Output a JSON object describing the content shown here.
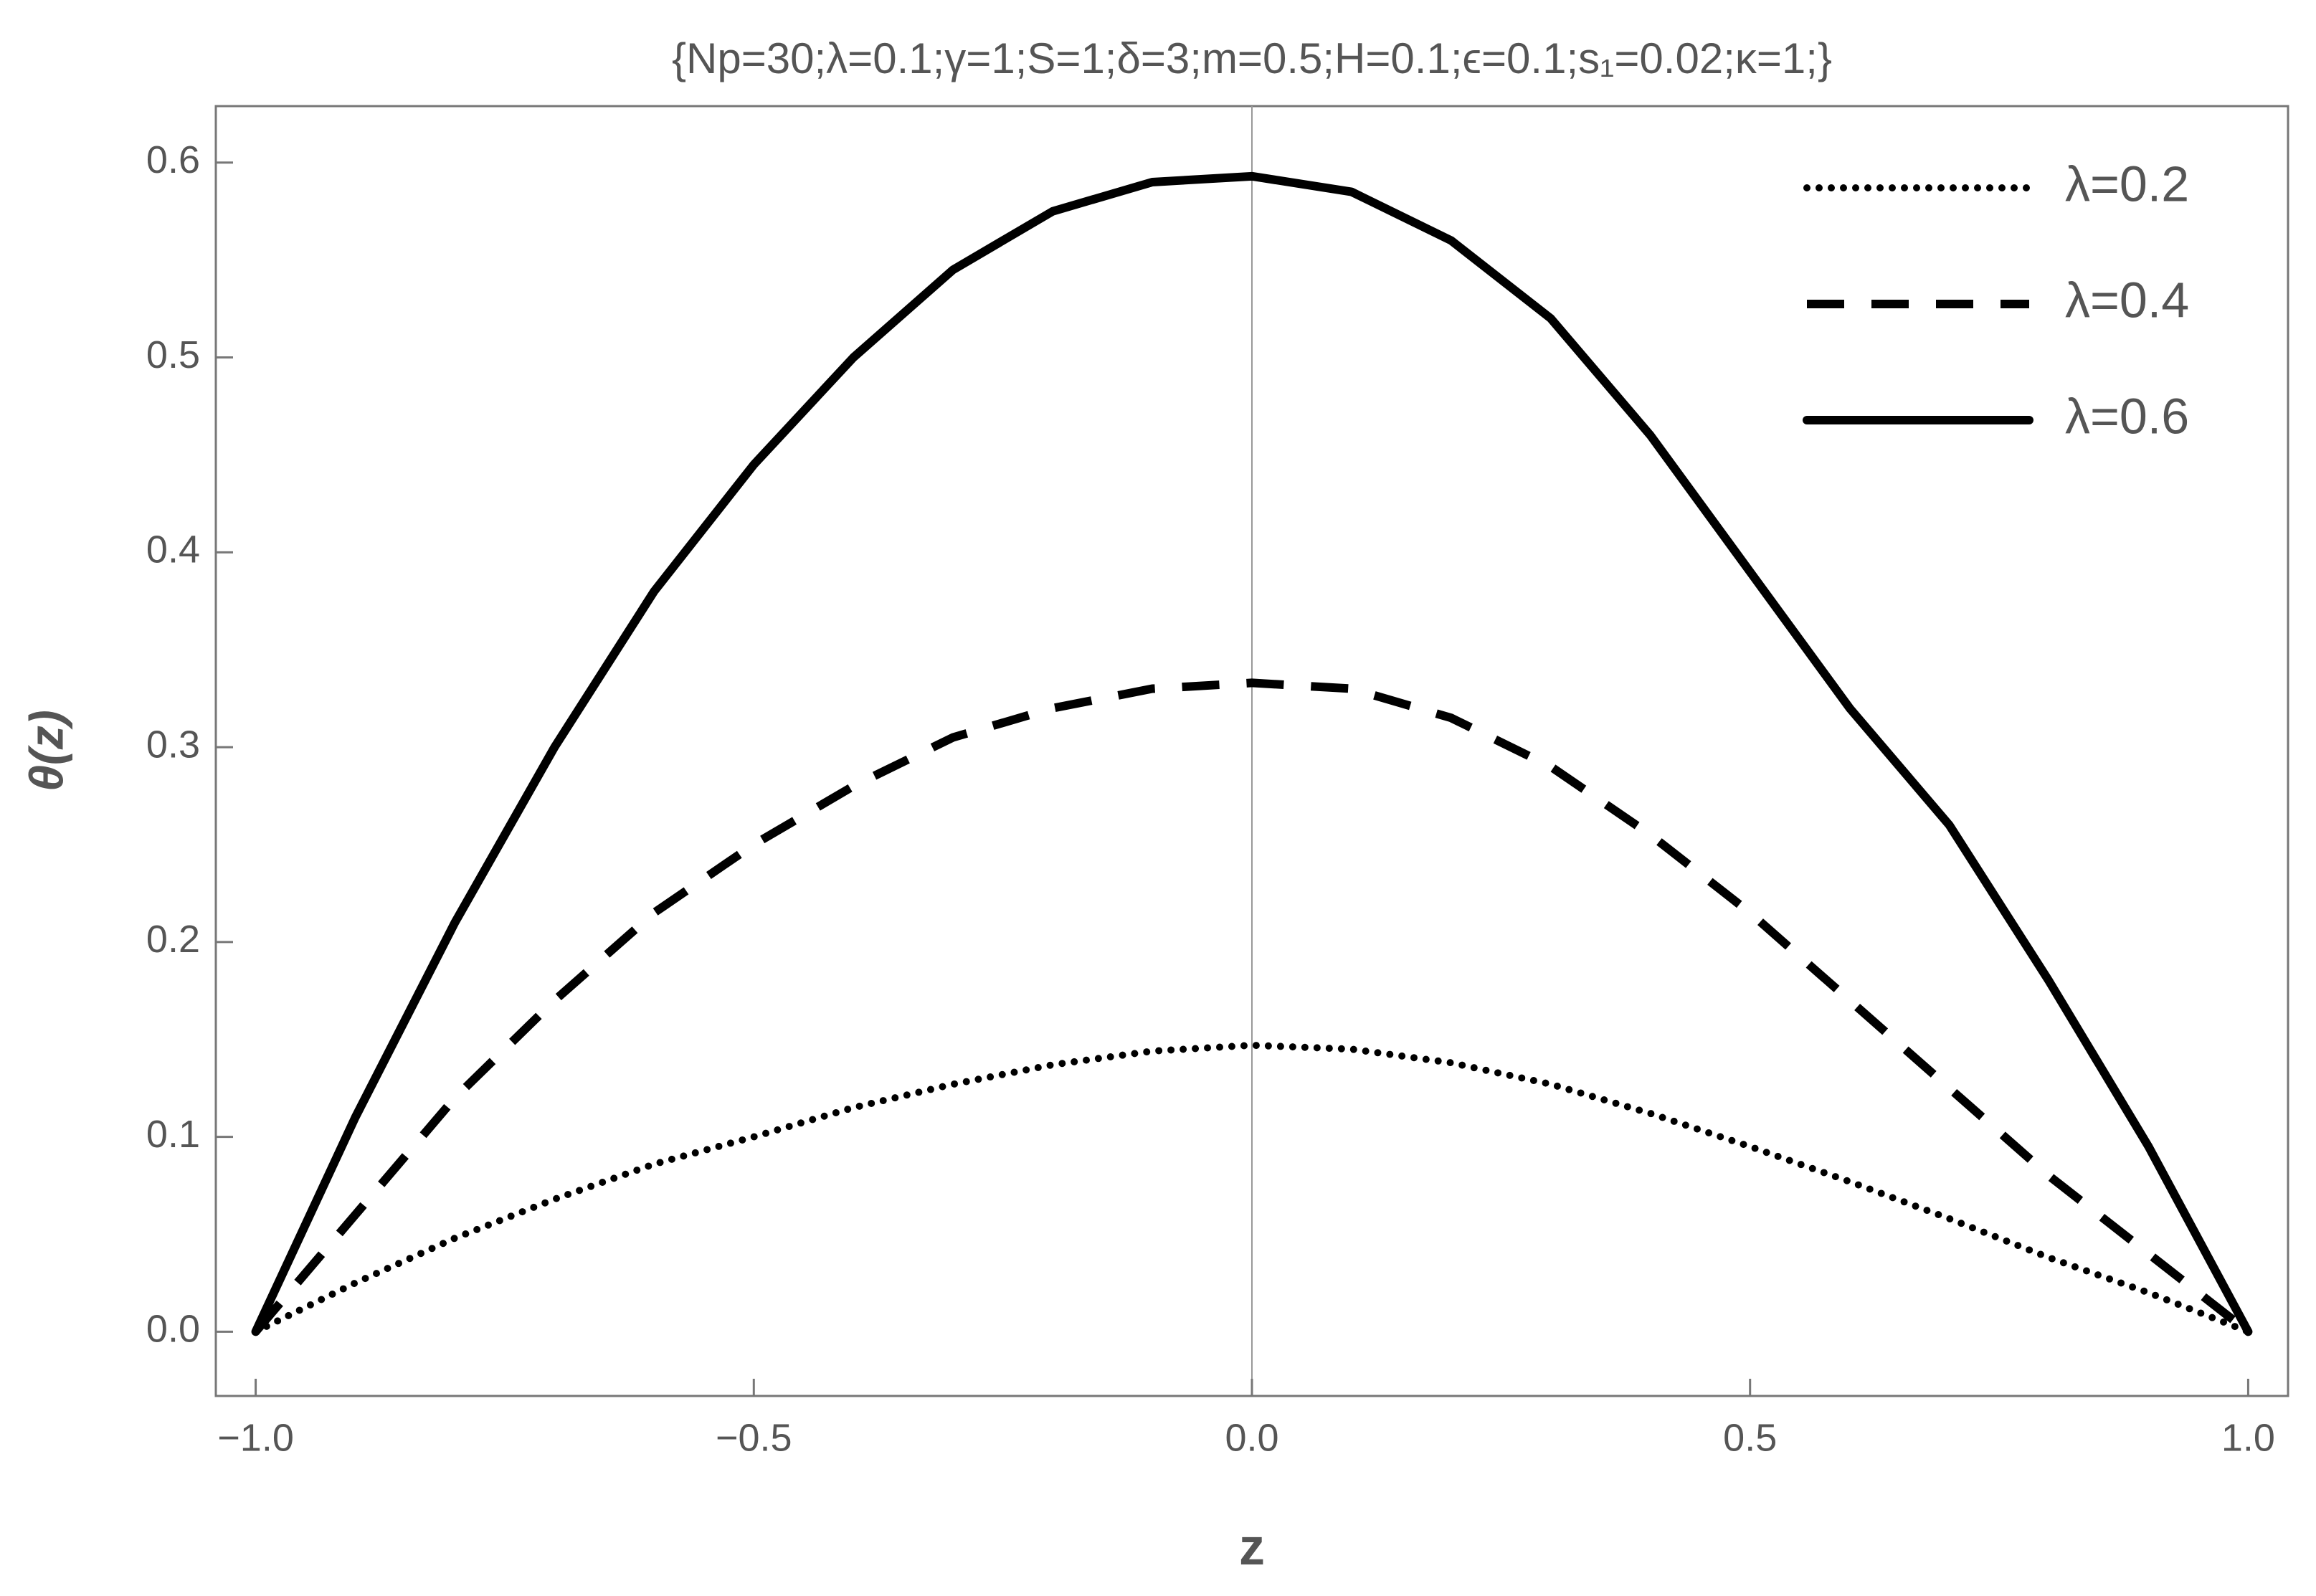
{
  "chart_data": {
    "type": "line",
    "title": "{Np=30;λ=0.1;γ=1;S=1;δ=3;m=0.5;H=0.1;ϵ=0.1;s₁=0.02;κ=1;}",
    "x_label": "z",
    "y_label": "θ(z)",
    "x": [
      -1,
      -0.9,
      -0.8,
      -0.7,
      -0.6,
      -0.5,
      -0.4,
      -0.3,
      -0.2,
      -0.1,
      0,
      0.1,
      0.2,
      0.3,
      0.4,
      0.5,
      0.6,
      0.7,
      0.8,
      0.9,
      1
    ],
    "series": [
      {
        "name": "λ=0.2",
        "color": "#000000",
        "style": "dotted",
        "values": [
          0,
          0.025,
          0.048,
          0.068,
          0.086,
          0.1,
          0.115,
          0.127,
          0.137,
          0.144,
          0.147,
          0.145,
          0.138,
          0.127,
          0.112,
          0.095,
          0.077,
          0.058,
          0.038,
          0.02,
          0
        ]
      },
      {
        "name": "λ=0.4",
        "color": "#000000",
        "style": "dashed",
        "values": [
          0,
          0.06,
          0.12,
          0.17,
          0.215,
          0.25,
          0.28,
          0.305,
          0.32,
          0.33,
          0.333,
          0.33,
          0.315,
          0.29,
          0.255,
          0.215,
          0.17,
          0.125,
          0.08,
          0.04,
          0
        ]
      },
      {
        "name": "λ=0.6",
        "color": "#000000",
        "style": "solid",
        "values": [
          0,
          0.11,
          0.21,
          0.3,
          0.38,
          0.445,
          0.5,
          0.545,
          0.575,
          0.59,
          0.593,
          0.585,
          0.56,
          0.52,
          0.46,
          0.39,
          0.32,
          0.26,
          0.18,
          0.095,
          0
        ]
      }
    ],
    "xlim": [
      -1.04,
      1.04
    ],
    "ylim": [
      -0.033,
      0.629
    ],
    "xticks": [
      {
        "value": -1,
        "label": "−1.0"
      },
      {
        "value": -0.5,
        "label": "−0.5"
      },
      {
        "value": 0,
        "label": "0.0"
      },
      0.5,
      {
        "value": 1,
        "label": "1.0"
      }
    ],
    "yticks": [
      {
        "value": 0,
        "label": "0.0"
      },
      0.1,
      0.2,
      0.3,
      0.4,
      0.5,
      0.6
    ],
    "legend": "top-right"
  }
}
